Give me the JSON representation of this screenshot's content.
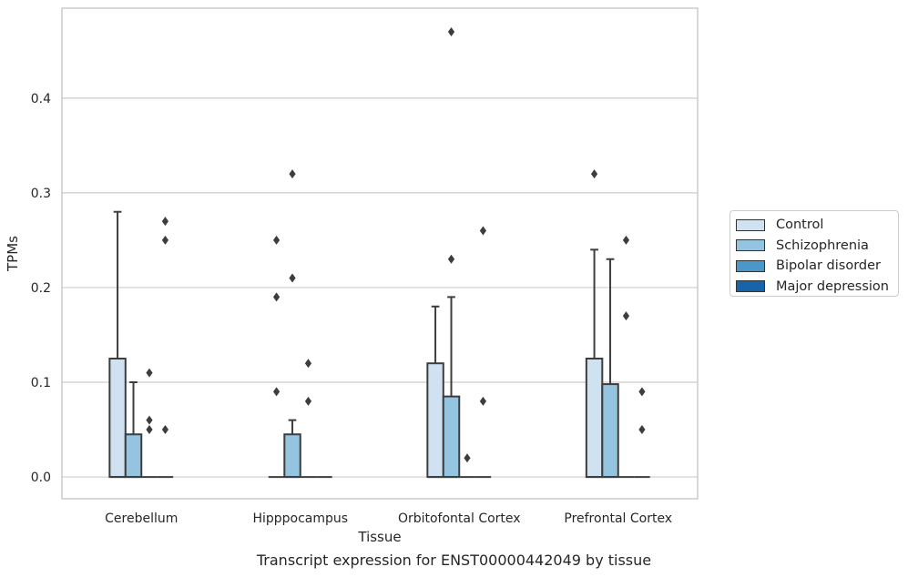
{
  "chart_data": {
    "type": "boxplot",
    "xlabel": "Tissue",
    "ylabel": "TPMs",
    "caption": "Transcript expression for ENST00000442049 by tissue",
    "ylim": [
      -0.023,
      0.495
    ],
    "yticks": [
      "0.0",
      "0.1",
      "0.2",
      "0.3",
      "0.4"
    ],
    "yticks_values": [
      0.0,
      0.1,
      0.2,
      0.3,
      0.4
    ],
    "grid": true,
    "legend_position": "right",
    "categories": [
      "Cerebellum",
      "Hipppocampus",
      "Orbitofontal Cortex",
      "Prefrontal Cortex"
    ],
    "series": [
      {
        "name": "Control",
        "color": "#d0e1f2"
      },
      {
        "name": "Schizophrenia",
        "color": "#94c4df"
      },
      {
        "name": "Bipolar disorder",
        "color": "#4a98c9"
      },
      {
        "name": "Major depression",
        "color": "#1764ab"
      }
    ],
    "boxes": [
      [
        {
          "q1": 0,
          "median": 0,
          "q3": 0.125,
          "whisker_low": 0,
          "whisker_high": 0.28,
          "outliers": []
        },
        {
          "q1": 0,
          "median": 0,
          "q3": 0.045,
          "whisker_low": 0,
          "whisker_high": 0.1,
          "outliers": []
        },
        {
          "q1": 0,
          "median": 0,
          "q3": 0,
          "whisker_low": 0,
          "whisker_high": 0,
          "outliers": [
            0.11,
            0.06,
            0.05
          ]
        },
        {
          "q1": 0,
          "median": 0,
          "q3": 0,
          "whisker_low": 0,
          "whisker_high": 0,
          "outliers": [
            0.27,
            0.25,
            0.05
          ]
        }
      ],
      [
        {
          "q1": 0,
          "median": 0,
          "q3": 0,
          "whisker_low": 0,
          "whisker_high": 0,
          "outliers": [
            0.25,
            0.19,
            0.09
          ]
        },
        {
          "q1": 0,
          "median": 0,
          "q3": 0.045,
          "whisker_low": 0,
          "whisker_high": 0.06,
          "outliers": [
            0.32,
            0.21
          ]
        },
        {
          "q1": 0,
          "median": 0,
          "q3": 0,
          "whisker_low": 0,
          "whisker_high": 0,
          "outliers": [
            0.12,
            0.08
          ]
        },
        {
          "q1": 0,
          "median": 0,
          "q3": 0,
          "whisker_low": 0,
          "whisker_high": 0,
          "outliers": []
        }
      ],
      [
        {
          "q1": 0,
          "median": 0,
          "q3": 0.12,
          "whisker_low": 0,
          "whisker_high": 0.18,
          "outliers": []
        },
        {
          "q1": 0,
          "median": 0,
          "q3": 0.085,
          "whisker_low": 0,
          "whisker_high": 0.19,
          "outliers": [
            0.47,
            0.23
          ]
        },
        {
          "q1": 0,
          "median": 0,
          "q3": 0,
          "whisker_low": 0,
          "whisker_high": 0,
          "outliers": [
            0.02
          ]
        },
        {
          "q1": 0,
          "median": 0,
          "q3": 0,
          "whisker_low": 0,
          "whisker_high": 0,
          "outliers": [
            0.26,
            0.08
          ]
        }
      ],
      [
        {
          "q1": 0,
          "median": 0,
          "q3": 0.125,
          "whisker_low": 0,
          "whisker_high": 0.24,
          "outliers": [
            0.32
          ]
        },
        {
          "q1": 0,
          "median": 0,
          "q3": 0.098,
          "whisker_low": 0,
          "whisker_high": 0.23,
          "outliers": []
        },
        {
          "q1": 0,
          "median": 0,
          "q3": 0,
          "whisker_low": 0,
          "whisker_high": 0,
          "outliers": [
            0.25,
            0.17
          ]
        },
        {
          "q1": 0,
          "median": 0,
          "q3": 0,
          "whisker_low": 0,
          "whisker_high": 0,
          "outliers": [
            0.09,
            0.05
          ]
        }
      ]
    ]
  }
}
